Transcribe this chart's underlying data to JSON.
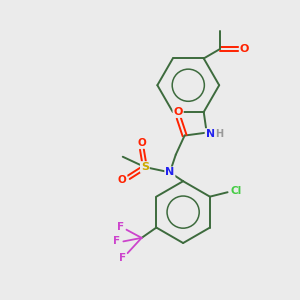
{
  "bg_color": "#ebebeb",
  "atom_colors": {
    "C": "#3d6b3d",
    "O": "#ff2200",
    "N": "#2222ee",
    "S": "#ccaa00",
    "F": "#cc44cc",
    "Cl": "#44cc44",
    "H": "#999999"
  },
  "bond_color": "#3d6b3d"
}
